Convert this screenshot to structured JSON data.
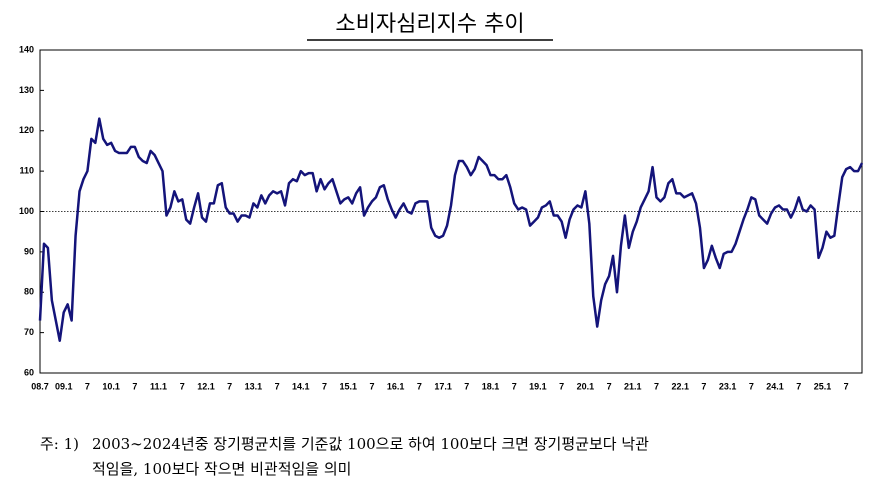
{
  "chart_data": {
    "type": "line",
    "title": "소비자심리지수 추이",
    "categories": [
      "08.7",
      null,
      null,
      null,
      null,
      null,
      "09.1",
      null,
      null,
      null,
      null,
      null,
      "7",
      null,
      null,
      null,
      null,
      null,
      "10.1",
      null,
      null,
      null,
      null,
      null,
      "7",
      null,
      null,
      null,
      null,
      null,
      "11.1",
      null,
      null,
      null,
      null,
      null,
      "7",
      null,
      null,
      null,
      null,
      null,
      "12.1",
      null,
      null,
      null,
      null,
      null,
      "7",
      null,
      null,
      null,
      null,
      null,
      "13.1",
      null,
      null,
      null,
      null,
      null,
      "7",
      null,
      null,
      null,
      null,
      null,
      "14.1",
      null,
      null,
      null,
      null,
      null,
      "7",
      null,
      null,
      null,
      null,
      null,
      "15.1",
      null,
      null,
      null,
      null,
      null,
      "7",
      null,
      null,
      null,
      null,
      null,
      "16.1",
      null,
      null,
      null,
      null,
      null,
      "7",
      null,
      null,
      null,
      null,
      null,
      "17.1",
      null,
      null,
      null,
      null,
      null,
      "7",
      null,
      null,
      null,
      null,
      null,
      "18.1",
      null,
      null,
      null,
      null,
      null,
      "7",
      null,
      null,
      null,
      null,
      null,
      "19.1",
      null,
      null,
      null,
      null,
      null,
      "7",
      null,
      null,
      null,
      null,
      null,
      "20.1",
      null,
      null,
      null,
      null,
      null,
      "7",
      null,
      null,
      null,
      null,
      null,
      "21.1",
      null,
      null,
      null,
      null,
      null,
      "7",
      null,
      null,
      null,
      null,
      null,
      "22.1",
      null,
      null,
      null,
      null,
      null,
      "7",
      null,
      null,
      null,
      null,
      null,
      "23.1",
      null,
      null,
      null,
      null,
      null,
      "7",
      null,
      null,
      null,
      null,
      null,
      "24.1",
      null,
      null,
      null,
      null,
      null,
      "7",
      null,
      null,
      null,
      null,
      null,
      "25.1",
      null,
      null,
      null,
      null,
      null,
      "7",
      null,
      null,
      null,
      null
    ],
    "series": [
      {
        "color": "#14147a",
        "values": [
          73,
          92,
          91,
          78,
          73,
          68,
          75,
          77,
          73,
          94,
          105,
          108,
          110,
          118,
          117,
          123,
          118,
          116.5,
          117,
          115,
          114.5,
          114.5,
          114.5,
          116,
          116,
          113.5,
          112.5,
          112,
          115,
          114,
          112,
          110,
          99,
          101,
          105,
          102.5,
          103,
          98,
          97,
          101,
          104.5,
          98.5,
          97.5,
          102,
          102,
          106.5,
          107,
          101,
          99.5,
          99.5,
          97.5,
          99,
          99,
          98.5,
          102,
          101,
          104,
          102,
          104,
          105,
          104.5,
          105,
          101.5,
          107,
          108,
          107.5,
          110,
          109,
          109.5,
          109.5,
          105,
          108,
          105.5,
          107,
          108,
          105,
          102,
          103,
          103.5,
          102,
          104.5,
          106,
          99,
          101,
          102.5,
          103.5,
          106,
          106.5,
          103,
          100.5,
          98.5,
          100.5,
          102,
          100,
          99.5,
          102,
          102.5,
          102.5,
          102.5,
          96,
          94,
          93.5,
          94,
          96.5,
          101.5,
          109,
          112.5,
          112.5,
          111,
          109,
          110.5,
          113.5,
          112.5,
          111.5,
          109,
          109,
          108,
          108,
          109,
          106,
          102,
          100.5,
          101,
          100.5,
          96.5,
          97.5,
          98.5,
          101,
          101.5,
          102.5,
          99,
          99,
          97.5,
          93.5,
          98,
          100.5,
          101.5,
          101,
          105,
          97,
          79,
          71.5,
          78,
          82,
          84,
          89,
          80,
          91.5,
          99,
          91,
          95,
          97.5,
          101,
          103,
          105,
          111,
          103.5,
          102.5,
          103.5,
          107,
          108,
          104.5,
          104.5,
          103.5,
          104,
          104.5,
          102,
          96,
          86,
          88,
          91.5,
          88.5,
          86,
          89.5,
          90,
          90,
          92,
          95,
          98,
          100.5,
          103.5,
          103,
          99,
          98,
          97,
          99.5,
          101,
          101.5,
          100.5,
          100.5,
          98.5,
          100.5,
          103.5,
          100.5,
          100,
          101.5,
          100.5,
          88.5,
          91,
          95,
          93.5,
          94,
          101.5,
          108.5,
          110.5,
          111,
          110,
          110,
          112
        ]
      }
    ],
    "ylim": [
      60,
      140
    ],
    "yticks": [
      60,
      70,
      80,
      90,
      100,
      110,
      120,
      130,
      140
    ],
    "reference_line": 100
  },
  "note": {
    "prefix": "주: 1)",
    "lines": [
      "2003∼2024년중 장기평균치를 기준값 100으로 하여 100보다 크면 장기평균보다 낙관",
      "적임을, 100보다 작으면 비관적임을 의미"
    ]
  }
}
